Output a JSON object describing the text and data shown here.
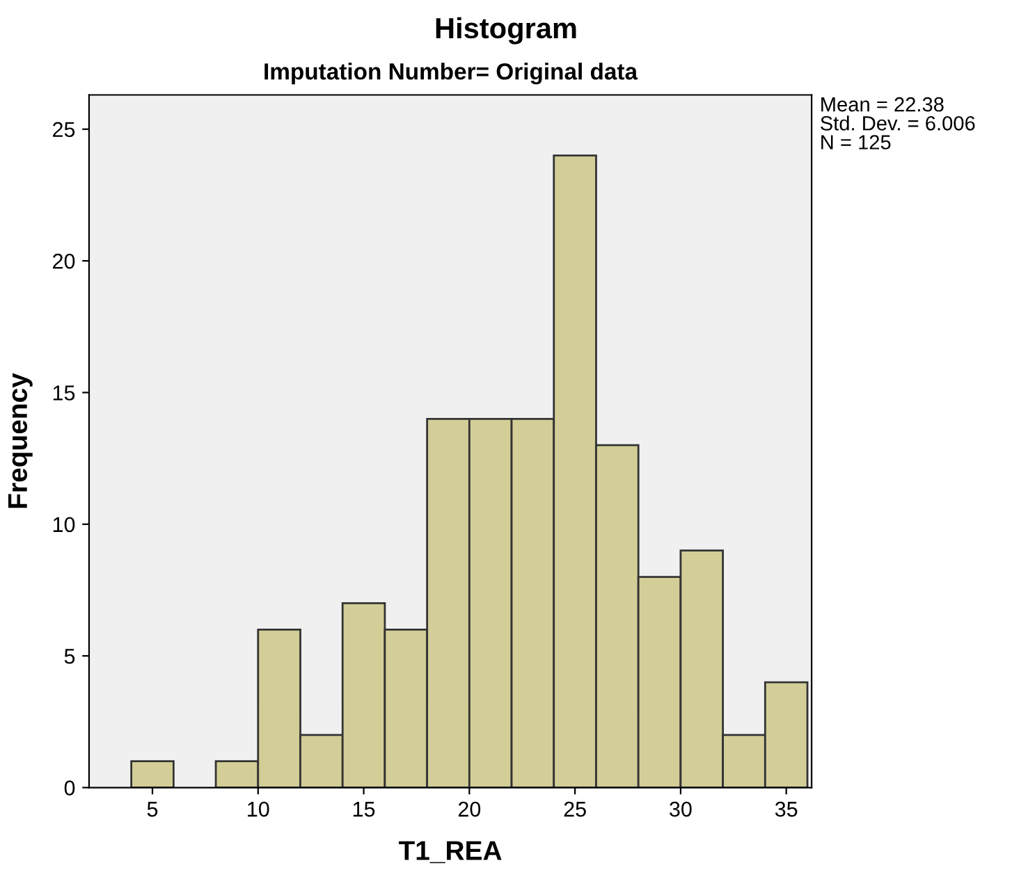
{
  "chart_data": {
    "type": "histogram",
    "title": "Histogram",
    "subtitle": "Imputation Number= Original data",
    "xlabel": "T1_REA",
    "ylabel": "Frequency",
    "bins": [
      4,
      6,
      8,
      10,
      12,
      14,
      16,
      18,
      20,
      22,
      24,
      26,
      28,
      30,
      32,
      34,
      36
    ],
    "values": [
      1,
      0,
      1,
      6,
      2,
      7,
      6,
      14,
      14,
      14,
      24,
      13,
      8,
      9,
      2,
      4
    ],
    "color": "#d3ce97",
    "xlim": [
      2,
      36.2
    ],
    "xticks": [
      5,
      10,
      15,
      20,
      25,
      30,
      35
    ],
    "ylim": [
      0,
      26.3
    ],
    "yticks": [
      0,
      5,
      10,
      15,
      20,
      25
    ],
    "grid": false,
    "annotations": [
      "Mean = 22.38\nStd. Dev. = 6.006\nN = 125"
    ]
  }
}
